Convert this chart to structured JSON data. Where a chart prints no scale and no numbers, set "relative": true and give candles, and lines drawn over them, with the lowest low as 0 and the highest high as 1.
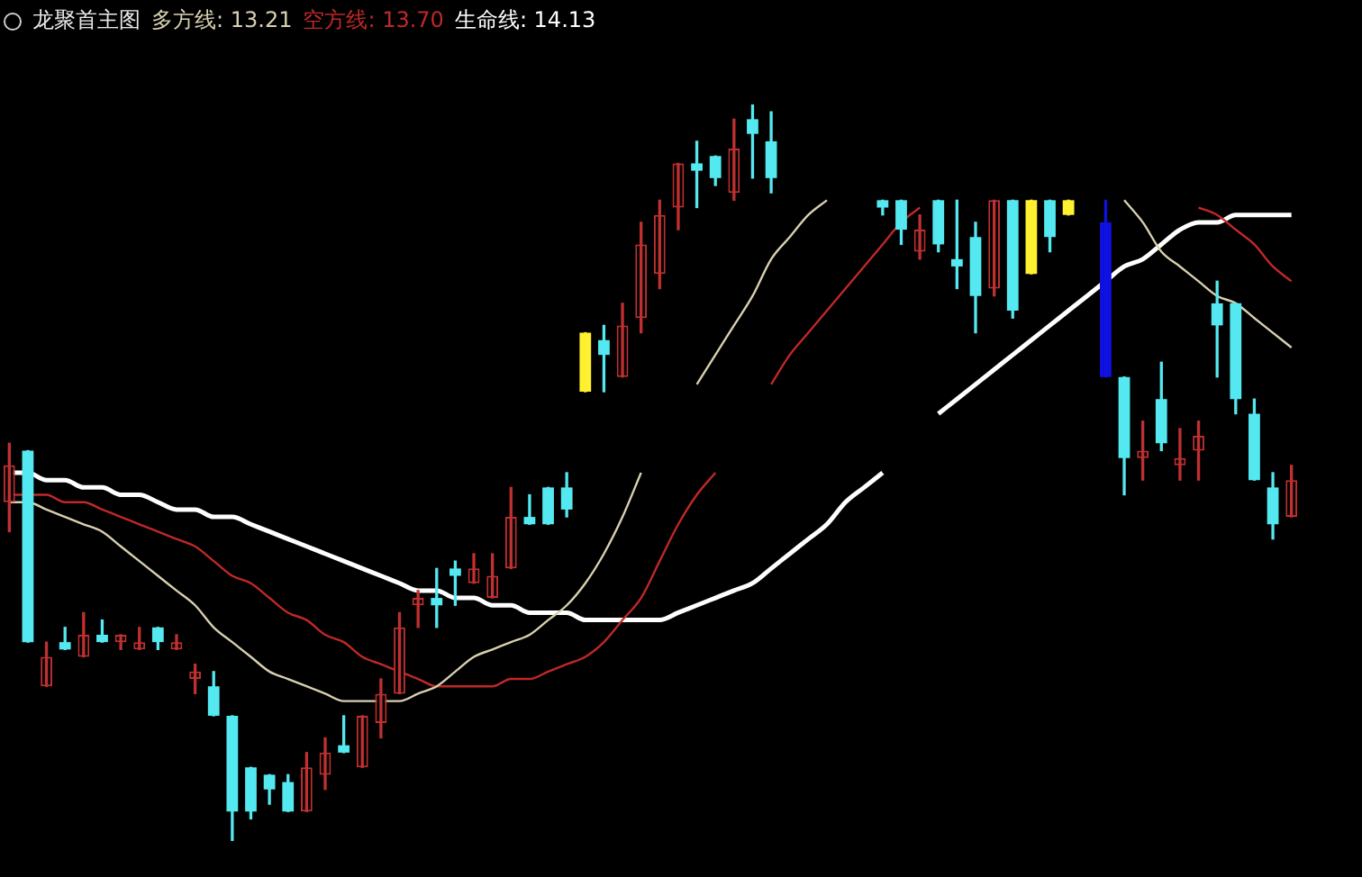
{
  "chart_data": {
    "type": "candlestick",
    "title": "龙聚首主图",
    "relative": true,
    "categories": [
      null,
      null,
      null,
      null,
      null,
      null,
      null,
      null,
      null,
      null,
      null,
      null,
      null,
      null,
      null,
      null,
      null,
      null,
      null,
      null,
      null,
      null,
      null,
      null,
      null,
      null,
      null,
      null,
      null,
      null,
      null,
      null,
      null,
      null,
      null,
      null,
      null,
      null,
      null,
      null,
      null,
      null,
      null,
      null,
      null,
      null,
      null,
      null,
      null,
      null,
      null,
      null,
      null,
      null,
      null,
      null,
      null,
      null,
      null,
      null,
      null,
      null,
      null,
      null,
      null,
      null,
      null,
      null,
      null,
      null
    ],
    "ohlc": [
      [
        0.46,
        0.54,
        0.42,
        0.51
      ],
      [
        0.53,
        0.53,
        0.27,
        0.27
      ],
      [
        0.21,
        0.27,
        0.21,
        0.25
      ],
      [
        0.27,
        0.29,
        0.26,
        0.26
      ],
      [
        0.25,
        0.31,
        0.25,
        0.28
      ],
      [
        0.28,
        0.3,
        0.27,
        0.27
      ],
      [
        0.27,
        0.28,
        0.26,
        0.28
      ],
      [
        0.26,
        0.29,
        0.26,
        0.27
      ],
      [
        0.29,
        0.29,
        0.26,
        0.27
      ],
      [
        0.26,
        0.28,
        0.26,
        0.27
      ],
      [
        0.22,
        0.24,
        0.2,
        0.23
      ],
      [
        0.21,
        0.23,
        0.17,
        0.17
      ],
      [
        0.17,
        0.17,
        0,
        0.04
      ],
      [
        0.1,
        0.1,
        0.03,
        0.04
      ],
      [
        0.09,
        0.09,
        0.05,
        0.07
      ],
      [
        0.08,
        0.09,
        0.04,
        0.04
      ],
      [
        0.04,
        0.12,
        0.04,
        0.1
      ],
      [
        0.09,
        0.14,
        0.07,
        0.12
      ],
      [
        0.13,
        0.17,
        0.12,
        0.12
      ],
      [
        0.1,
        0.17,
        0.1,
        0.17
      ],
      [
        0.16,
        0.22,
        0.14,
        0.2
      ],
      [
        0.2,
        0.31,
        0.2,
        0.29
      ],
      [
        0.32,
        0.34,
        0.29,
        0.33
      ],
      [
        0.33,
        0.37,
        0.29,
        0.32
      ],
      [
        0.37,
        0.38,
        0.32,
        0.36
      ],
      [
        0.35,
        0.39,
        0.35,
        0.37
      ],
      [
        0.33,
        0.39,
        0.33,
        0.36
      ],
      [
        0.37,
        0.48,
        0.37,
        0.44
      ],
      [
        0.44,
        0.47,
        0.43,
        0.43
      ],
      [
        0.48,
        0.48,
        0.43,
        0.43
      ],
      [
        0.48,
        0.5,
        0.44,
        0.45
      ],
      [
        0.69,
        0.69,
        0.61,
        0.61
      ],
      [
        0.68,
        0.7,
        0.61,
        0.66
      ],
      [
        0.63,
        0.73,
        0.63,
        0.7
      ],
      [
        0.71,
        0.84,
        0.69,
        0.81
      ],
      [
        0.77,
        0.87,
        0.75,
        0.85
      ],
      [
        0.86,
        0.92,
        0.83,
        0.92
      ],
      [
        0.92,
        0.95,
        0.86,
        0.91
      ],
      [
        0.93,
        0.93,
        0.89,
        0.9
      ],
      [
        0.88,
        0.98,
        0.87,
        0.94
      ],
      [
        0.98,
        1,
        0.9,
        0.96
      ],
      [
        0.95,
        0.99,
        0.88,
        0.9
      ],
      null,
      null,
      null,
      null,
      null,
      [
        0.87,
        0.87,
        0.85,
        0.86
      ],
      [
        0.87,
        0.87,
        0.81,
        0.83
      ],
      [
        0.8,
        0.85,
        0.79,
        0.83
      ],
      [
        0.87,
        0.87,
        0.8,
        0.81
      ],
      [
        0.79,
        0.87,
        0.75,
        0.78
      ],
      [
        0.82,
        0.84,
        0.69,
        0.74
      ],
      [
        0.75,
        0.87,
        0.74,
        0.87
      ],
      [
        0.87,
        0.87,
        0.71,
        0.72
      ],
      [
        0.87,
        0.87,
        0.77,
        0.77
      ],
      [
        0.87,
        0.87,
        0.8,
        0.82
      ],
      [
        0.87,
        0.87,
        0.85,
        0.85
      ],
      null,
      [
        0.84,
        0.87,
        0.63,
        0.63
      ],
      [
        0.63,
        0.63,
        0.47,
        0.52
      ],
      [
        0.52,
        0.57,
        0.49,
        0.53
      ],
      [
        0.6,
        0.65,
        0.53,
        0.54
      ],
      [
        0.51,
        0.56,
        0.49,
        0.52
      ],
      [
        0.53,
        0.57,
        0.49,
        0.55
      ],
      [
        0.73,
        0.76,
        0.63,
        0.7
      ],
      [
        0.73,
        0.73,
        0.58,
        0.6
      ],
      [
        0.58,
        0.6,
        0.49,
        0.49
      ],
      [
        0.48,
        0.5,
        0.41,
        0.43
      ],
      [
        0.44,
        0.51,
        0.44,
        0.49
      ]
    ],
    "colors": [
      "#c03030",
      "#54e8f0",
      "#c03030",
      "#54e8f0",
      "#c03030",
      "#54e8f0",
      "#c03030",
      "#c03030",
      "#54e8f0",
      "#c03030",
      "#c03030",
      "#54e8f0",
      "#54e8f0",
      "#54e8f0",
      "#54e8f0",
      "#54e8f0",
      "#c03030",
      "#c03030",
      "#54e8f0",
      "#c03030",
      "#c03030",
      "#c03030",
      "#c03030",
      "#54e8f0",
      "#54e8f0",
      "#c03030",
      "#c03030",
      "#c03030",
      "#54e8f0",
      "#54e8f0",
      "#54e8f0",
      "#fff030",
      "#54e8f0",
      "#c03030",
      "#c03030",
      "#c03030",
      "#c03030",
      "#54e8f0",
      "#54e8f0",
      "#c03030",
      "#54e8f0",
      "#54e8f0",
      null,
      null,
      null,
      null,
      null,
      "#54e8f0",
      "#54e8f0",
      "#c03030",
      "#54e8f0",
      "#54e8f0",
      "#54e8f0",
      "#c03030",
      "#54e8f0",
      "#fff030",
      "#54e8f0",
      "#fff030",
      null,
      "#1010e0",
      "#54e8f0",
      "#c03030",
      "#54e8f0",
      "#c03030",
      "#c03030",
      "#54e8f0",
      "#54e8f0",
      "#54e8f0",
      "#54e8f0",
      "#c03030"
    ],
    "series": [
      {
        "name": "多方线: 13.21",
        "type": "line",
        "color": "#d8d0b0",
        "values": [
          0.46,
          0.46,
          0.45,
          0.44,
          0.43,
          0.42,
          0.4,
          0.38,
          0.36,
          0.34,
          0.32,
          0.29,
          0.27,
          0.25,
          0.23,
          0.22,
          0.21,
          0.2,
          0.19,
          0.19,
          0.19,
          0.19,
          0.2,
          0.21,
          0.23,
          0.25,
          0.26,
          0.27,
          0.28,
          0.3,
          0.32,
          0.35,
          0.39,
          0.44,
          0.5,
          null,
          null,
          0.62,
          0.66,
          0.7,
          0.74,
          0.79,
          0.82,
          0.85,
          0.87,
          null,
          null,
          null,
          null,
          null,
          null,
          null,
          null,
          null,
          null,
          null,
          null,
          null,
          null,
          null,
          0.87,
          0.84,
          0.8,
          0.78,
          0.76,
          0.74,
          0.73,
          0.71,
          0.69,
          0.67
        ]
      },
      {
        "name": "空方线: 13.70",
        "type": "line",
        "color": "#c02828",
        "values": [
          0.47,
          0.47,
          0.47,
          0.46,
          0.46,
          0.45,
          0.44,
          0.43,
          0.42,
          0.41,
          0.4,
          0.38,
          0.36,
          0.35,
          0.33,
          0.31,
          0.3,
          0.28,
          0.27,
          0.25,
          0.24,
          0.23,
          0.22,
          0.21,
          0.21,
          0.21,
          0.21,
          0.22,
          0.22,
          0.23,
          0.24,
          0.25,
          0.27,
          0.3,
          0.33,
          0.38,
          0.43,
          0.47,
          0.5,
          null,
          null,
          0.62,
          0.66,
          0.69,
          0.72,
          0.75,
          0.78,
          0.81,
          0.84,
          0.86,
          null,
          null,
          null,
          null,
          null,
          null,
          null,
          null,
          null,
          null,
          null,
          null,
          null,
          null,
          0.86,
          0.85,
          0.83,
          0.81,
          0.78,
          0.76
        ]
      },
      {
        "name": "生命线: 14.13",
        "type": "line",
        "color": "#ffffff",
        "values": [
          0.5,
          0.5,
          0.49,
          0.49,
          0.48,
          0.48,
          0.47,
          0.47,
          0.46,
          0.45,
          0.45,
          0.44,
          0.44,
          0.43,
          0.42,
          0.41,
          0.4,
          0.39,
          0.38,
          0.37,
          0.36,
          0.35,
          0.34,
          0.34,
          0.33,
          0.33,
          0.32,
          0.32,
          0.31,
          0.31,
          0.31,
          0.3,
          0.3,
          0.3,
          0.3,
          0.3,
          0.31,
          0.32,
          0.33,
          0.34,
          0.35,
          0.37,
          0.39,
          0.41,
          0.43,
          0.46,
          0.48,
          0.5,
          null,
          null,
          0.58,
          0.6,
          0.62,
          0.64,
          0.66,
          0.68,
          0.7,
          0.72,
          0.74,
          0.76,
          0.78,
          0.79,
          0.81,
          0.83,
          0.84,
          0.84,
          0.85,
          0.85,
          0.85,
          0.85
        ]
      }
    ]
  }
}
